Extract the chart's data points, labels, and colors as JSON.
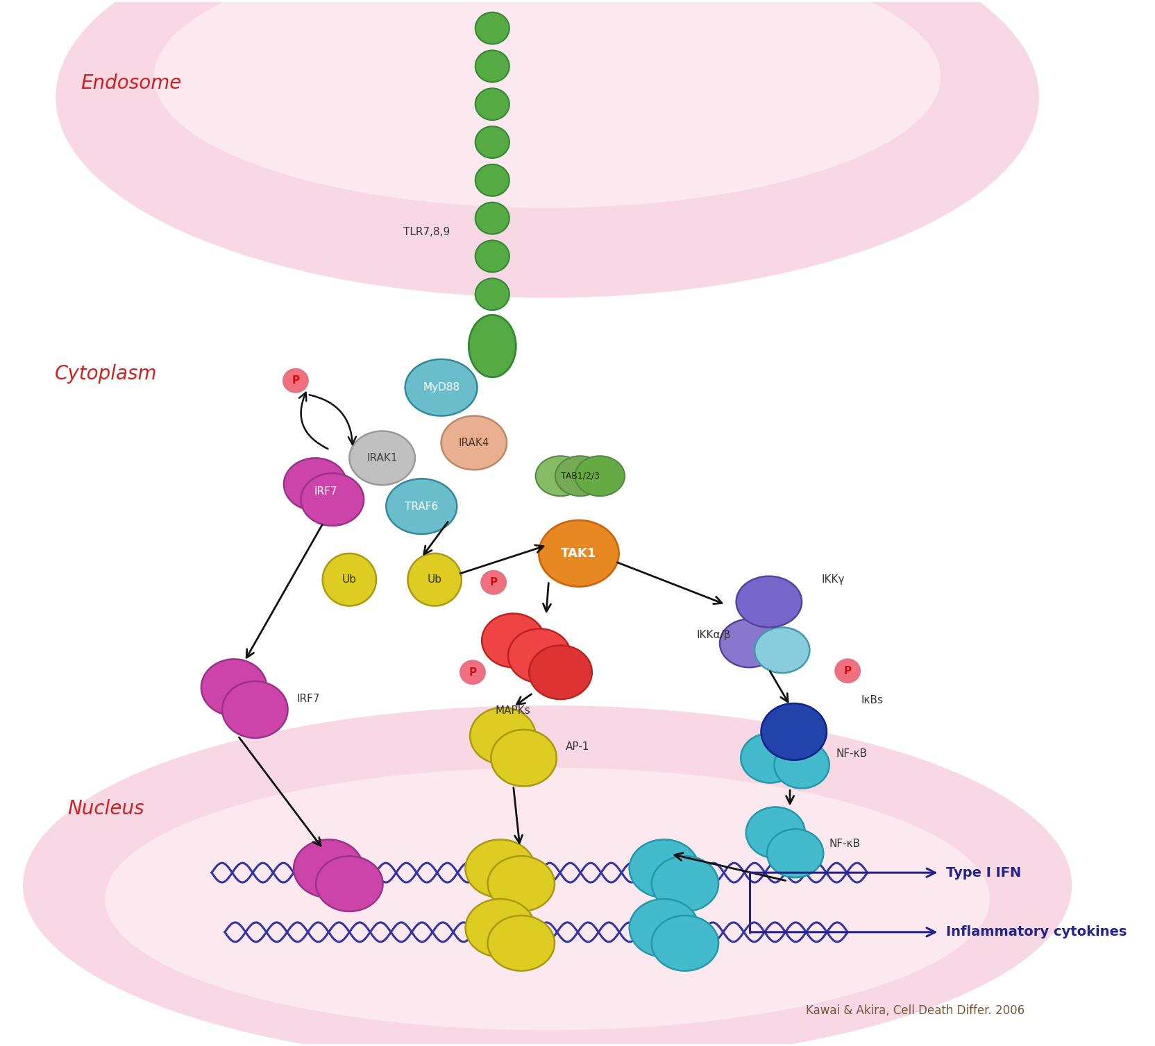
{
  "figsize": [
    16.64,
    15.08
  ],
  "dpi": 100,
  "bg_color": "#ffffff",
  "endosome_label": "Endosome",
  "cytoplasm_label": "Cytoplasm",
  "nucleus_label": "Nucleus",
  "label_color": "#cc2222",
  "label_fontsize": 20,
  "tlr_color": "#55aa44",
  "tlr_label": "TLR7,8,9",
  "myd88_color": "#6abecc",
  "myd88_label": "MyD88",
  "irak4_color": "#e8b090",
  "irak4_label": "IRAK4",
  "irak1_color": "#c0c0c0",
  "irak1_label": "IRAK1",
  "traf6_color": "#6abecc",
  "traf6_label": "TRAF6",
  "irf7_color": "#cc44aa",
  "irf7_label": "IRF7",
  "ub_color": "#ddcc22",
  "ub_label": "Ub",
  "tab_color": "#88bb66",
  "tab_label": "TAB1/2/3",
  "tak1_color": "#e88820",
  "tak1_label": "TAK1",
  "ikkg_color": "#7766cc",
  "ikkg_label": "IKKγ",
  "ikkab_label": "IKKα/β",
  "ikkab_color": "#8877dd",
  "ikkcyan_color": "#88ccdd",
  "mapks_color": "#ee4444",
  "mapks_label": "MAPKs",
  "ap1_color": "#ddcc22",
  "ap1_label": "AP-1",
  "nfkb_blue_color": "#2244aa",
  "nfkb_cyan_color": "#44bbcc",
  "nfkb_label": "NF-κB",
  "ikbs_label": "IκBs",
  "p_color": "#f07080",
  "p_text_color": "#cc1111",
  "arrow_color": "#111111",
  "dna_color": "#3333aa",
  "type_ifn_label": "Type I IFN",
  "inflam_label": "Inflammatory cytokines",
  "dna_arrow_color": "#22228a",
  "citation": "Kawai & Akira, Cell Death Differ. 2006",
  "citation_color": "#775533",
  "citation_fontsize": 12
}
